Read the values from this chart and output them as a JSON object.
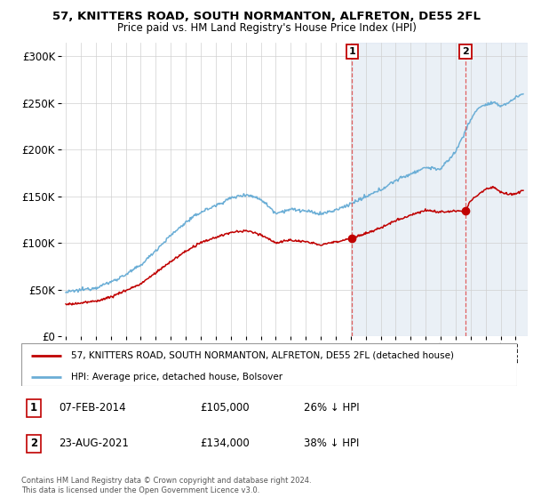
{
  "title1": "57, KNITTERS ROAD, SOUTH NORMANTON, ALFRETON, DE55 2FL",
  "title2": "Price paid vs. HM Land Registry's House Price Index (HPI)",
  "yticks": [
    0,
    50000,
    100000,
    150000,
    200000,
    250000,
    300000
  ],
  "ytick_labels": [
    "£0",
    "£50K",
    "£100K",
    "£150K",
    "£200K",
    "£250K",
    "£300K"
  ],
  "xmin": 1994.7,
  "xmax": 2025.8,
  "ymin": 0,
  "ymax": 315000,
  "legend_line1": "57, KNITTERS ROAD, SOUTH NORMANTON, ALFRETON, DE55 2FL (detached house)",
  "legend_line2": "HPI: Average price, detached house, Bolsover",
  "t1_label": "1",
  "t1_date": "07-FEB-2014",
  "t1_price": "£105,000",
  "t1_hpi": "26% ↓ HPI",
  "t1_x": 2014.1,
  "t1_y": 105000,
  "t2_label": "2",
  "t2_date": "23-AUG-2021",
  "t2_price": "£134,000",
  "t2_hpi": "38% ↓ HPI",
  "t2_x": 2021.64,
  "t2_y": 134000,
  "footer": "Contains HM Land Registry data © Crown copyright and database right 2024.\nThis data is licensed under the Open Government Licence v3.0.",
  "hpi_color": "#6baed6",
  "price_color": "#c00000",
  "shade_color": "#dce6f1",
  "dash_color": "#e06060",
  "grid_color": "#d0d0d0"
}
